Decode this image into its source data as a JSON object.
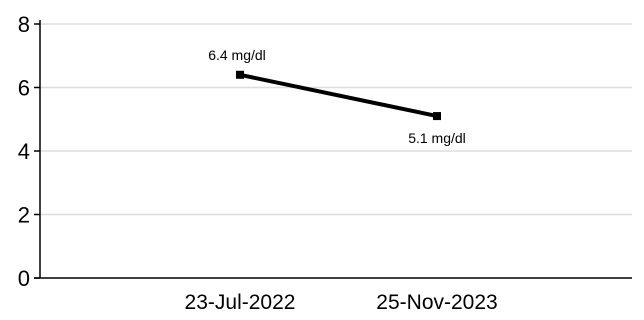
{
  "chart_data": {
    "type": "line",
    "title": "",
    "xlabel": "",
    "ylabel": "",
    "x": [
      "23-Jul-2022",
      "25-Nov-2023"
    ],
    "series": [
      {
        "values": [
          6.4,
          5.1
        ],
        "labels": [
          "6.4 mg/dl",
          "5.1 mg/dl"
        ],
        "color": "#000000"
      }
    ],
    "ylim": [
      0,
      8
    ],
    "yticks": [
      "0",
      "2",
      "4",
      "6",
      "8"
    ],
    "grid": true,
    "grid_color": "#dddddd",
    "legend": "none"
  }
}
